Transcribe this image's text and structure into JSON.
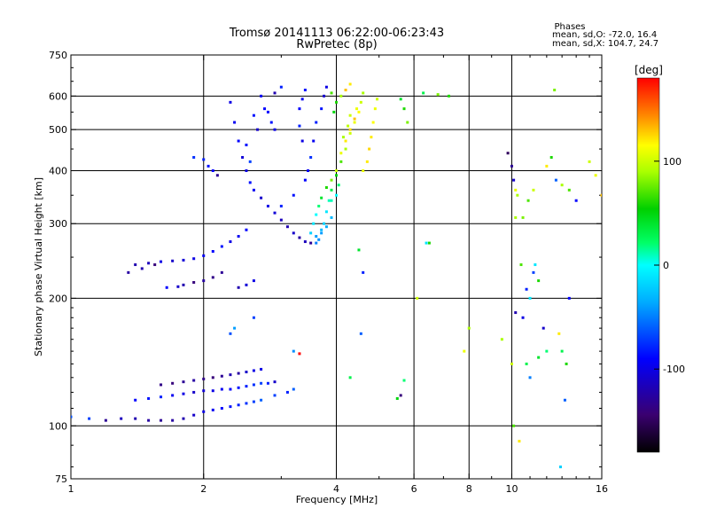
{
  "chart_data": {
    "type": "scatter",
    "title": "Tromsø 20141113 06:22:00-06:23:43",
    "subtitle": "RwPretec (8p)",
    "xlabel": "Frequency [MHz]",
    "ylabel": "Stationary phase Virtual Height [km]",
    "x_scale": "log",
    "y_scale": "log",
    "xlim": [
      1,
      16
    ],
    "ylim": [
      75,
      750
    ],
    "x_ticks": [
      1,
      2,
      4,
      6,
      8,
      10,
      16
    ],
    "x_tick_labels": [
      "1",
      "2",
      "4",
      "6",
      "8",
      "10",
      "16"
    ],
    "x_grid": [
      2,
      4,
      6,
      8,
      10
    ],
    "y_ticks": [
      75,
      100,
      200,
      300,
      400,
      500,
      600,
      750
    ],
    "y_tick_labels": [
      "75",
      "100",
      "200",
      "300",
      "400",
      "500",
      "600",
      "750"
    ],
    "y_grid": [
      100,
      200,
      300,
      400,
      500,
      600
    ],
    "grid": true,
    "stats": {
      "heading": "Phases",
      "line_o": "mean, sd,O: -72.0, 16.4",
      "line_x": "mean, sd,X: 104.7, 24.7"
    },
    "colorbar": {
      "label": "[deg]",
      "range": [
        -180,
        180
      ],
      "ticks": [
        100,
        0,
        -100
      ],
      "tick_labels": [
        "100",
        "0",
        "-100"
      ]
    },
    "series": [
      {
        "points": [
          [
            2.3,
            580
          ],
          [
            2.35,
            520
          ],
          [
            2.4,
            470
          ],
          [
            2.45,
            430
          ],
          [
            2.5,
            400
          ],
          [
            2.55,
            375
          ],
          [
            2.6,
            360
          ],
          [
            2.7,
            345
          ],
          [
            2.8,
            330
          ],
          [
            2.9,
            318
          ],
          [
            3.0,
            306
          ],
          [
            3.1,
            295
          ],
          [
            3.2,
            285
          ],
          [
            3.3,
            278
          ],
          [
            3.4,
            272
          ],
          [
            3.5,
            270
          ],
          [
            2.5,
            290
          ],
          [
            2.4,
            280
          ],
          [
            2.3,
            272
          ],
          [
            2.2,
            265
          ],
          [
            2.1,
            258
          ],
          [
            2.0,
            252
          ],
          [
            1.9,
            248
          ],
          [
            1.8,
            246
          ],
          [
            1.7,
            245
          ],
          [
            1.6,
            244
          ],
          [
            1.5,
            242
          ],
          [
            1.4,
            240
          ],
          [
            2.2,
            230
          ],
          [
            2.1,
            224
          ],
          [
            2.0,
            220
          ],
          [
            1.9,
            218
          ],
          [
            1.8,
            215
          ],
          [
            1.75,
            213
          ],
          [
            2.6,
            220
          ],
          [
            2.5,
            215
          ],
          [
            2.4,
            212
          ],
          [
            2.6,
            180
          ],
          [
            3.0,
            330
          ],
          [
            3.2,
            350
          ],
          [
            3.4,
            380
          ],
          [
            3.5,
            430
          ],
          [
            3.55,
            470
          ],
          [
            3.6,
            520
          ],
          [
            3.7,
            560
          ],
          [
            3.75,
            600
          ],
          [
            3.8,
            630
          ],
          [
            3.3,
            560
          ],
          [
            3.35,
            590
          ],
          [
            3.4,
            620
          ],
          [
            3.3,
            510
          ],
          [
            3.35,
            470
          ],
          [
            3.45,
            400
          ],
          [
            2.8,
            550
          ],
          [
            2.85,
            520
          ],
          [
            2.9,
            500
          ],
          [
            2.7,
            600
          ],
          [
            2.75,
            560
          ],
          [
            2.6,
            540
          ],
          [
            2.65,
            500
          ],
          [
            2.9,
            610
          ],
          [
            3.0,
            630
          ],
          [
            2.5,
            460
          ],
          [
            2.55,
            420
          ],
          [
            1.9,
            430
          ],
          [
            2.0,
            425
          ],
          [
            2.05,
            410
          ],
          [
            2.1,
            400
          ],
          [
            2.15,
            390
          ],
          [
            1.6,
            125
          ],
          [
            1.7,
            126
          ],
          [
            1.8,
            127
          ],
          [
            1.9,
            128
          ],
          [
            2.0,
            129
          ],
          [
            2.1,
            130
          ],
          [
            2.2,
            131
          ],
          [
            2.3,
            132
          ],
          [
            2.4,
            133
          ],
          [
            2.5,
            134
          ],
          [
            2.6,
            135
          ],
          [
            2.7,
            136
          ],
          [
            1.4,
            115
          ],
          [
            1.5,
            116
          ],
          [
            1.6,
            117
          ],
          [
            1.7,
            118
          ],
          [
            1.8,
            119
          ],
          [
            1.9,
            120
          ],
          [
            2.0,
            121
          ],
          [
            2.1,
            121
          ],
          [
            2.2,
            122
          ],
          [
            2.3,
            122
          ],
          [
            2.4,
            123
          ],
          [
            2.5,
            124
          ],
          [
            2.6,
            125
          ],
          [
            2.7,
            126
          ],
          [
            2.8,
            126
          ],
          [
            2.9,
            127
          ],
          [
            1.3,
            104
          ],
          [
            1.4,
            104
          ],
          [
            1.5,
            103
          ],
          [
            1.6,
            103
          ],
          [
            1.7,
            103
          ],
          [
            1.8,
            104
          ],
          [
            1.9,
            106
          ],
          [
            2.0,
            108
          ],
          [
            2.1,
            109
          ],
          [
            2.2,
            110
          ],
          [
            2.3,
            111
          ],
          [
            2.4,
            112
          ],
          [
            2.5,
            113
          ],
          [
            2.6,
            114
          ],
          [
            2.7,
            115
          ],
          [
            1.0,
            105
          ],
          [
            1.1,
            104
          ],
          [
            1.2,
            103
          ],
          [
            1.35,
            230
          ],
          [
            1.45,
            235
          ],
          [
            1.55,
            240
          ],
          [
            1.65,
            212
          ],
          [
            2.9,
            118
          ],
          [
            3.1,
            120
          ],
          [
            3.2,
            122
          ],
          [
            2.3,
            165
          ],
          [
            2.35,
            170
          ],
          [
            3.2,
            150
          ],
          [
            3.3,
            148
          ]
        ],
        "phases": [
          -100,
          -95,
          -90,
          -105,
          -100,
          -85,
          -95,
          -110,
          -100,
          -105,
          -115,
          -120,
          -110,
          -125,
          -115,
          -130,
          -90,
          -95,
          -100,
          -85,
          -90,
          -95,
          -100,
          -105,
          -110,
          -100,
          -115,
          -120,
          -130,
          -135,
          -125,
          -140,
          -120,
          -110,
          -100,
          -105,
          -120,
          -70,
          -80,
          -85,
          -90,
          -75,
          -95,
          -80,
          -85,
          -110,
          -100,
          -90,
          -95,
          -85,
          -80,
          -100,
          -95,
          -90,
          -85,
          -100,
          -95,
          -90,
          -85,
          -110,
          -120,
          -80,
          -85,
          -70,
          -75,
          -80,
          -85,
          -90,
          -130,
          -135,
          -140,
          -130,
          -125,
          -135,
          -140,
          -130,
          -120,
          -125,
          -110,
          -100,
          -100,
          -90,
          -85,
          -80,
          -95,
          -100,
          -110,
          -105,
          -100,
          -95,
          -90,
          -85,
          -80,
          -75,
          -70,
          -80,
          -110,
          -115,
          -120,
          -125,
          -130,
          -125,
          -120,
          -110,
          -100,
          -95,
          -90,
          -85,
          -80,
          -75,
          -70,
          -60,
          -65,
          -70,
          -130,
          -125,
          -120,
          -140,
          -90,
          -70,
          -80,
          -60,
          -65,
          -40,
          -45
        ]
      },
      {
        "points": [
          [
            3.6,
            280
          ],
          [
            3.7,
            290
          ],
          [
            3.75,
            300
          ],
          [
            3.8,
            320
          ],
          [
            3.85,
            340
          ],
          [
            3.9,
            360
          ],
          [
            4.0,
            390
          ],
          [
            4.1,
            420
          ],
          [
            4.2,
            450
          ],
          [
            4.3,
            490
          ],
          [
            4.4,
            520
          ],
          [
            4.5,
            550
          ],
          [
            4.55,
            580
          ],
          [
            4.6,
            610
          ],
          [
            3.5,
            285
          ],
          [
            3.55,
            300
          ],
          [
            3.6,
            315
          ],
          [
            3.65,
            330
          ],
          [
            3.7,
            345
          ],
          [
            3.8,
            365
          ],
          [
            3.9,
            380
          ],
          [
            4.0,
            400
          ],
          [
            4.1,
            440
          ],
          [
            4.2,
            470
          ],
          [
            4.3,
            500
          ],
          [
            4.4,
            530
          ],
          [
            4.45,
            560
          ],
          [
            4.3,
            540
          ],
          [
            4.25,
            510
          ],
          [
            4.15,
            480
          ],
          [
            3.6,
            270
          ],
          [
            3.65,
            275
          ],
          [
            3.7,
            285
          ],
          [
            3.8,
            295
          ],
          [
            3.9,
            310
          ],
          [
            4.0,
            350
          ],
          [
            4.05,
            370
          ],
          [
            3.9,
            340
          ],
          [
            4.6,
            400
          ],
          [
            4.7,
            420
          ],
          [
            4.75,
            450
          ],
          [
            4.8,
            480
          ],
          [
            4.85,
            520
          ],
          [
            4.9,
            560
          ],
          [
            4.95,
            590
          ],
          [
            5.6,
            590
          ],
          [
            5.7,
            560
          ],
          [
            5.8,
            520
          ],
          [
            4.2,
            620
          ],
          [
            4.3,
            640
          ],
          [
            4.1,
            600
          ],
          [
            3.9,
            610
          ],
          [
            4.0,
            580
          ],
          [
            3.95,
            550
          ],
          [
            4.5,
            260
          ],
          [
            4.6,
            230
          ],
          [
            4.55,
            165
          ],
          [
            4.3,
            130
          ],
          [
            5.7,
            128
          ],
          [
            5.6,
            118
          ],
          [
            5.5,
            116
          ],
          [
            6.3,
            610
          ],
          [
            6.8,
            605
          ],
          [
            7.2,
            600
          ],
          [
            10.2,
            310
          ],
          [
            10.5,
            240
          ],
          [
            11.0,
            200
          ],
          [
            12.0,
            150
          ],
          [
            11.5,
            145
          ],
          [
            10.0,
            140
          ],
          [
            12.5,
            620
          ],
          [
            13.0,
            150
          ],
          [
            13.2,
            115
          ]
        ],
        "phases": [
          -40,
          -30,
          -20,
          -10,
          10,
          30,
          50,
          70,
          90,
          100,
          110,
          115,
          100,
          90,
          -20,
          -10,
          0,
          20,
          40,
          60,
          80,
          100,
          110,
          120,
          125,
          130,
          110,
          100,
          95,
          90,
          -50,
          -45,
          -40,
          -35,
          -30,
          0,
          20,
          10,
          110,
          120,
          125,
          120,
          115,
          110,
          100,
          40,
          60,
          80,
          130,
          120,
          90,
          70,
          60,
          50,
          40,
          -80,
          -60,
          30,
          20,
          -140,
          50,
          30,
          80,
          60,
          90,
          70,
          -10,
          20,
          40,
          100,
          80,
          30,
          -60
        ]
      },
      {
        "points": [
          [
            9.8,
            440
          ],
          [
            10.0,
            410
          ],
          [
            10.1,
            380
          ],
          [
            10.2,
            360
          ],
          [
            10.3,
            350
          ],
          [
            10.6,
            310
          ],
          [
            10.9,
            340
          ],
          [
            11.2,
            360
          ],
          [
            12.0,
            410
          ],
          [
            12.3,
            430
          ],
          [
            12.6,
            380
          ],
          [
            13.0,
            370
          ],
          [
            13.5,
            360
          ],
          [
            14.0,
            340
          ],
          [
            15.0,
            420
          ],
          [
            15.5,
            390
          ],
          [
            16.0,
            350
          ],
          [
            10.8,
            210
          ],
          [
            11.2,
            230
          ],
          [
            11.5,
            220
          ],
          [
            10.2,
            185
          ],
          [
            10.6,
            180
          ],
          [
            11.8,
            170
          ],
          [
            12.8,
            165
          ],
          [
            13.5,
            200
          ],
          [
            9.5,
            160
          ],
          [
            10.8,
            140
          ],
          [
            11.0,
            130
          ],
          [
            13.3,
            140
          ],
          [
            10.1,
            100
          ],
          [
            10.4,
            92
          ],
          [
            12.9,
            80
          ],
          [
            11.3,
            240
          ],
          [
            6.4,
            270
          ],
          [
            6.1,
            200
          ],
          [
            6.5,
            270
          ],
          [
            7.8,
            150
          ],
          [
            8.0,
            170
          ]
        ],
        "phases": [
          -150,
          -130,
          -110,
          110,
          90,
          80,
          70,
          100,
          120,
          60,
          -60,
          90,
          70,
          -90,
          100,
          110,
          130,
          -80,
          -70,
          60,
          -120,
          -100,
          -110,
          120,
          -90,
          90,
          30,
          -50,
          60,
          70,
          120,
          -20,
          -10,
          -10,
          100,
          60,
          110,
          90
        ]
      }
    ]
  }
}
